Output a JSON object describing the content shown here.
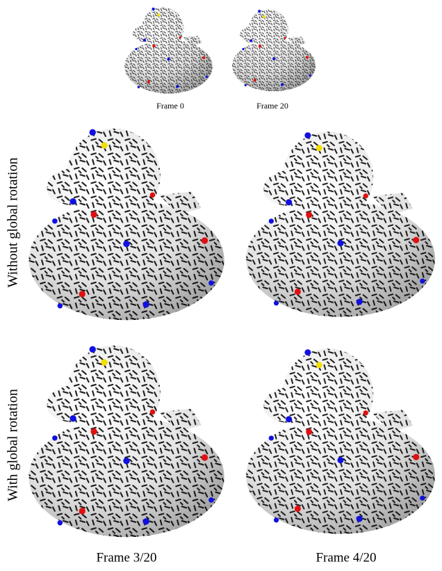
{
  "figure": {
    "top_captions": [
      "Frame 0",
      "Frame 20"
    ],
    "row_labels": [
      "Without global rotation",
      "With global rotation"
    ],
    "bottom_captions": [
      "Frame 3/20",
      "Frame 4/20"
    ]
  }
}
